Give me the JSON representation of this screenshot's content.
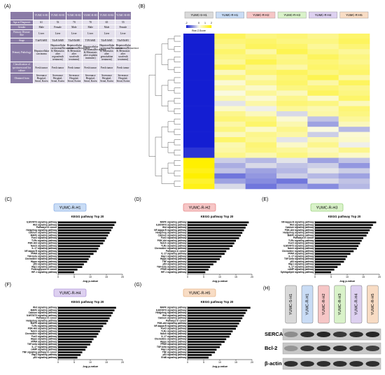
{
  "table": {
    "panel": "(A)",
    "columns": [
      "YUMC-S-H1",
      "YUMC-R-H1",
      "YUMC-R-H2",
      "YUMC-R-H3",
      "YUMC-R-H4",
      "YUMC-R-H5"
    ],
    "rows": [
      {
        "label": "Age at Diagnosis",
        "cells": [
          "61",
          "53",
          "70",
          "70",
          "65",
          "55"
        ]
      },
      {
        "label": "Gender",
        "cells": [
          "Male",
          "Female",
          "Male",
          "Male",
          "Male",
          "Female"
        ]
      },
      {
        "label": "Primary Disease Site",
        "cells": [
          "Liver",
          "Liver",
          "Liver",
          "Liver",
          "Liver",
          "Liver"
        ]
      },
      {
        "label": "Stage",
        "cells": [
          "T4aN1bM1",
          "T4aN1bM0",
          "T4aN1bM0",
          "T3N1bM1",
          "T4aN1bM1",
          "T4aN1bM1"
        ]
      },
      {
        "label": "Primary Pathology",
        "cells": [
          "Hepatocellular carcinoma",
          "Hepatocellular carcinoma(Recurrence & Metastasis after regorafenib treatment)",
          "Hepatocellular carcinoma(Recurrence & Metastasis after sorafenib treatment)",
          "Hepatocellular carcinoma(Recurrence & Metastasis after cisplatin treatment)",
          "Hepatocellular carcinoma(Recurrence & Metastasis after gemcitabine treatment)",
          "Hepatocellular carcinoma(Recurrence & Metastasis after sorafenib treatment)"
        ]
      },
      {
        "label": "Classification of specimen used for culture",
        "cells": [
          "Fresh tumor",
          "Fresh tumor",
          "Fresh tumor",
          "Fresh tumor",
          "Fresh tumor",
          "Fresh tumor"
        ]
      },
      {
        "label": "Obtained from",
        "cells": [
          "Severance Hospital, Seoul, Korea",
          "Severance Hospital, Seoul, Korea",
          "Severance Hospital, Seoul, Korea",
          "Severance Hospital, Seoul, Korea",
          "Severance Hospital, Seoul, Korea",
          "Severance Hospital, Seoul, Korea"
        ]
      }
    ]
  },
  "heatmap": {
    "panel": "(B)",
    "columns": [
      "YUMC-S-H1",
      "YUMC-R-H1",
      "YUMC-R-H2",
      "YUMC-R-H3",
      "YUMC-R-H4",
      "YUMC-R-H5"
    ],
    "column_colors": [
      "#d9d9d9",
      "#c9dcf5",
      "#f6c6c6",
      "#d9f2c9",
      "#ddd0f0",
      "#f8dcc4"
    ],
    "colorbar_label": "Row Z-Score",
    "clim": [
      -2,
      2
    ],
    "cticks": [
      -2,
      0,
      1,
      2
    ],
    "values": [
      [
        -2,
        1.2,
        0.9,
        1.0,
        0.8,
        1.1
      ],
      [
        -2,
        1.0,
        1.1,
        0.9,
        0.9,
        1.2
      ],
      [
        -2,
        0.8,
        1.2,
        1.1,
        0.7,
        1.0
      ],
      [
        -2,
        1.1,
        0.6,
        1.3,
        0.9,
        0.7
      ],
      [
        -2,
        0.9,
        1.0,
        0.8,
        1.2,
        0.9
      ],
      [
        -2,
        0.7,
        1.3,
        0.9,
        1.0,
        0.8
      ],
      [
        -2,
        1.2,
        0.8,
        0.6,
        1.1,
        1.0
      ],
      [
        -2,
        0.4,
        1.0,
        1.2,
        0.9,
        1.1
      ],
      [
        -2,
        0.9,
        0.5,
        1.0,
        1.3,
        0.6
      ],
      [
        -2,
        0.2,
        0.8,
        1.1,
        0.6,
        1.2
      ],
      [
        -2,
        0.6,
        0.3,
        0.9,
        1.0,
        0.8
      ],
      [
        -2,
        0.1,
        0.7,
        0.4,
        1.2,
        0.9
      ],
      [
        -2,
        0.5,
        0.2,
        0.8,
        0.3,
        1.1
      ],
      [
        -2,
        -0.2,
        0.6,
        1.0,
        0.9,
        0.4
      ],
      [
        -2,
        0.3,
        -0.1,
        0.7,
        0.5,
        1.0
      ],
      [
        -2,
        0.8,
        0.4,
        -0.3,
        0.6,
        0.9
      ],
      [
        -2,
        1.0,
        0.9,
        0.2,
        -0.5,
        0.7
      ],
      [
        -2,
        0.6,
        1.1,
        0.5,
        -0.8,
        0.4
      ],
      [
        -2,
        0.9,
        0.3,
        0.8,
        0.1,
        -0.6
      ],
      [
        -2,
        0.4,
        0.8,
        0.6,
        -0.4,
        0.2
      ],
      [
        -2,
        1.1,
        0.7,
        -0.2,
        0.5,
        0.3
      ],
      [
        -2,
        0.5,
        1.0,
        0.3,
        0.8,
        -0.1
      ],
      [
        -1.8,
        0.6,
        0.9,
        0.7,
        0.4,
        0.8
      ],
      [
        -1.8,
        0.8,
        0.5,
        0.9,
        0.6,
        0.3
      ],
      [
        2,
        -0.4,
        -0.6,
        -0.2,
        -0.8,
        -0.5
      ],
      [
        2,
        -0.7,
        -0.3,
        -0.5,
        -0.4,
        -0.9
      ],
      [
        1.8,
        -0.5,
        -0.8,
        -0.6,
        -0.2,
        -0.4
      ],
      [
        2,
        -1.2,
        -0.9,
        -0.4,
        -0.6,
        -0.8
      ],
      [
        1.6,
        -0.8,
        -1.0,
        -1.2,
        -0.3,
        -0.5
      ],
      [
        1.8,
        -0.3,
        -1.2,
        -0.8,
        -1.0,
        -0.6
      ]
    ]
  },
  "chart_data": [
    {
      "type": "bar",
      "panel": "(C)",
      "badge": "YUMC-R-H1",
      "badge_color": "#c9dcf5",
      "badge_border": "#6d9ae0",
      "title": "KEGG pathway Top 20",
      "xlabel": "-log p-value",
      "color": "#000000",
      "categories": [
        "IL6/STAT3 signaling pathway",
        "Wnt signaling pathway",
        "Pathways in cancer",
        "Hedgehog signaling pathway",
        "Calcium signaling pathway",
        "MAPK signaling pathway",
        "FoxO signaling pathway",
        "TLRs signaling pathway",
        "PI3K-Akt signaling pathway",
        "Notch signaling pathway",
        "IL-17 signaling pathway",
        "NF-kappa B signaling pathway",
        "PPAR signaling pathway",
        "TGF-beta signaling pathway",
        "Chemokine signaling pathway",
        "Hippo signaling pathway",
        "p53 signaling pathway",
        "Rap1 signaling pathway",
        "Proteoglycans in cancer",
        "HIF-1 signaling pathway"
      ],
      "values": [
        18,
        17.5,
        17,
        16.5,
        16,
        15.5,
        15,
        14.5,
        14,
        13,
        12.5,
        12,
        11,
        10,
        9.5,
        9,
        8,
        7.5,
        6,
        5
      ],
      "xlim": [
        0,
        20
      ],
      "xticks": [
        0,
        5,
        10,
        15,
        20
      ]
    },
    {
      "type": "bar",
      "panel": "(D)",
      "badge": "YUMC-R-H2",
      "badge_color": "#f6c6c6",
      "badge_border": "#e06d6d",
      "title": "KEGG pathway Top 20",
      "xlabel": "-log p-value",
      "color": "#000000",
      "categories": [
        "MAPK signaling pathway",
        "IL6/STAT3 signaling pathway",
        "Wnt signaling pathway",
        "NF-kappa B signaling pathway",
        "Hedgehog signaling pathway",
        "Calcium signaling pathway",
        "FoxO signaling pathway",
        "PI3K-Akt signaling pathway",
        "Notch signaling pathway",
        "TLRs signaling pathway",
        "Chemokine signaling pathway",
        "Pathways in cancer",
        "IL-17 signaling pathway",
        "Rap1 signaling pathway",
        "Hippo signaling pathway",
        "TNF signaling pathway",
        "p53 signaling pathway",
        "TGF-beta signaling pathway",
        "PPAR signaling pathway",
        "HIF-1 signaling pathway"
      ],
      "values": [
        19,
        18.5,
        18,
        17.5,
        17,
        16.5,
        16,
        15,
        14.5,
        14,
        13,
        12,
        11.5,
        10.5,
        10,
        9,
        8,
        7,
        6.5,
        5.5
      ],
      "xlim": [
        0,
        20
      ],
      "xticks": [
        0,
        5,
        10,
        15,
        20
      ]
    },
    {
      "type": "bar",
      "panel": "(E)",
      "badge": "YUMC-R-H3",
      "badge_color": "#d9f2c9",
      "badge_border": "#7cc45a",
      "title": "KEGG pathway Top 20",
      "xlabel": "-log p-value",
      "color": "#000000",
      "categories": [
        "NF-kappa B signaling pathway",
        "Wnt signaling pathway",
        "Calcium signaling pathway",
        "PI3K-Akt signaling pathway",
        "Hedgehog signaling pathway",
        "MAPK signaling pathway",
        "Pathways in cancer",
        "TLRs signaling pathway",
        "FoxO signaling pathway",
        "IL6/STAT3 signaling pathway",
        "Notch signaling pathway",
        "Chemokine signaling pathway",
        "PPAR signaling pathway",
        "IL-17 signaling pathway",
        "TGF-beta signaling pathway",
        "p53 signaling pathway",
        "Rap1 signaling pathway",
        "IL-17 signaling pathway",
        "cAMP signaling pathway",
        "Sphingolipid signaling pathway"
      ],
      "values": [
        19,
        18,
        17.5,
        17,
        16.5,
        16,
        15,
        14.5,
        14,
        13.5,
        13,
        12,
        11,
        10,
        9.5,
        9,
        8,
        7,
        6,
        5
      ],
      "xlim": [
        0,
        20
      ],
      "xticks": [
        0,
        5,
        10,
        15,
        20
      ]
    },
    {
      "type": "bar",
      "panel": "(F)",
      "badge": "YUMC-R-H4",
      "badge_color": "#ddd0f0",
      "badge_border": "#9b7cd1",
      "title": "KEGG pathway Top 20",
      "xlabel": "-log p-value",
      "color": "#000000",
      "categories": [
        "Wnt signaling pathway",
        "MAPK signaling pathway",
        "Calcium signaling pathway",
        "IL6/STAT3 signaling pathway",
        "Pathways in cancer",
        "Hedgehog signaling pathway",
        "MAPK signaling pathway",
        "TLRs signaling pathway",
        "PI3K-Akt signaling pathway",
        "Notch signaling pathway",
        "Chemokine signaling pathway",
        "FoxO signaling pathway",
        "Hippo signaling pathway",
        "PPAR signaling pathway",
        "TGF-beta signaling pathway",
        "IL-17 signaling pathway",
        "cAMP signaling pathway",
        "TNF signaling pathway in cancer",
        "Rap1 signaling pathway",
        "p53 signaling pathway"
      ],
      "values": [
        18,
        17.5,
        17,
        16.5,
        16,
        15.5,
        15,
        14,
        13.5,
        13,
        12.5,
        12,
        11,
        10.5,
        10,
        9,
        8.5,
        7.5,
        7,
        6
      ],
      "xlim": [
        0,
        20
      ],
      "xticks": [
        0,
        5,
        10,
        15,
        20
      ]
    },
    {
      "type": "bar",
      "panel": "(G)",
      "badge": "YUMC-R-H5",
      "badge_color": "#f8dcc4",
      "badge_border": "#e0a46d",
      "title": "KEGG pathway Top 20",
      "xlabel": "-log p-value",
      "color": "#000000",
      "categories": [
        "MAPK signaling pathway",
        "IL6/STAT3 signaling pathway",
        "Hedgehog signaling pathway",
        "Wnt signaling pathway",
        "Calcium signaling pathway",
        "Pathways in cancer",
        "PI3K-Akt signaling pathway",
        "NF-kappa B signaling pathway",
        "FoxO signaling pathway",
        "TLRs signaling pathway",
        "Notch signaling pathway",
        "IL-17 signaling pathway",
        "Chemokine signaling pathway",
        "Hippo signaling pathway",
        "PPAR signaling pathway",
        "TGF-beta signaling pathway",
        "Rap1 signaling pathway",
        "TNF signaling pathway",
        "p53 signaling pathway",
        "ErbB signaling pathway"
      ],
      "values": [
        19.5,
        18.5,
        18,
        17.5,
        17,
        16.5,
        16,
        15.5,
        15,
        14,
        13.5,
        13,
        12,
        11.5,
        10.5,
        10,
        9,
        8.5,
        7.5,
        6.5
      ],
      "xlim": [
        0,
        20
      ],
      "xticks": [
        0,
        5,
        10,
        15,
        20
      ]
    }
  ],
  "blot": {
    "panel": "(H)",
    "samples": [
      "YUMC-S-H1",
      "YUMC-R-H1",
      "YUMC-R-H2",
      "YUMC-R-H3",
      "YUMC-R-H4",
      "YUMC-R-H5"
    ],
    "sample_colors": [
      "#d9d9d9",
      "#c9dcf5",
      "#f6c6c6",
      "#d9f2c9",
      "#ddd0f0",
      "#f8dcc4"
    ],
    "proteins": [
      "SERCA",
      "Bcl-2",
      "β-actin"
    ]
  }
}
